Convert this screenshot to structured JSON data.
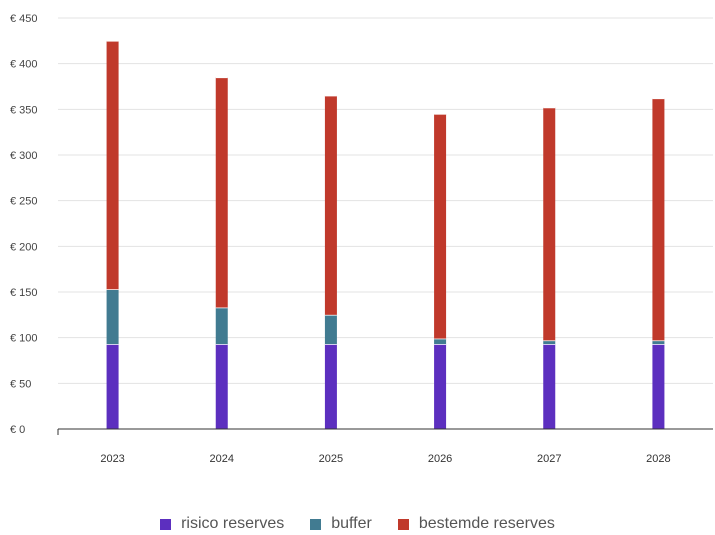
{
  "chart_data": {
    "type": "bar",
    "stacked": true,
    "categories": [
      "2023",
      "2024",
      "2025",
      "2026",
      "2027",
      "2028"
    ],
    "series": [
      {
        "name": "risico reserves",
        "color": "#5c2fbf",
        "values": [
          93,
          93,
          93,
          93,
          93,
          93
        ]
      },
      {
        "name": "buffer",
        "color": "#417b91",
        "values": [
          60,
          40,
          32,
          6,
          4,
          4
        ]
      },
      {
        "name": "bestemde reserves",
        "color": "#c0392b",
        "values": [
          272,
          252,
          240,
          246,
          255,
          265
        ]
      }
    ],
    "ylim": [
      0,
      450
    ],
    "yticks": [
      0,
      50,
      100,
      150,
      200,
      250,
      300,
      350,
      400,
      450
    ],
    "ytick_labels": [
      "€ 0",
      "€ 50",
      "€ 100",
      "€ 150",
      "€ 200",
      "€ 250",
      "€ 300",
      "€ 350",
      "€ 400",
      "€ 450"
    ],
    "title": "",
    "xlabel": "",
    "ylabel": "",
    "grid": true,
    "legend_position": "bottom"
  }
}
